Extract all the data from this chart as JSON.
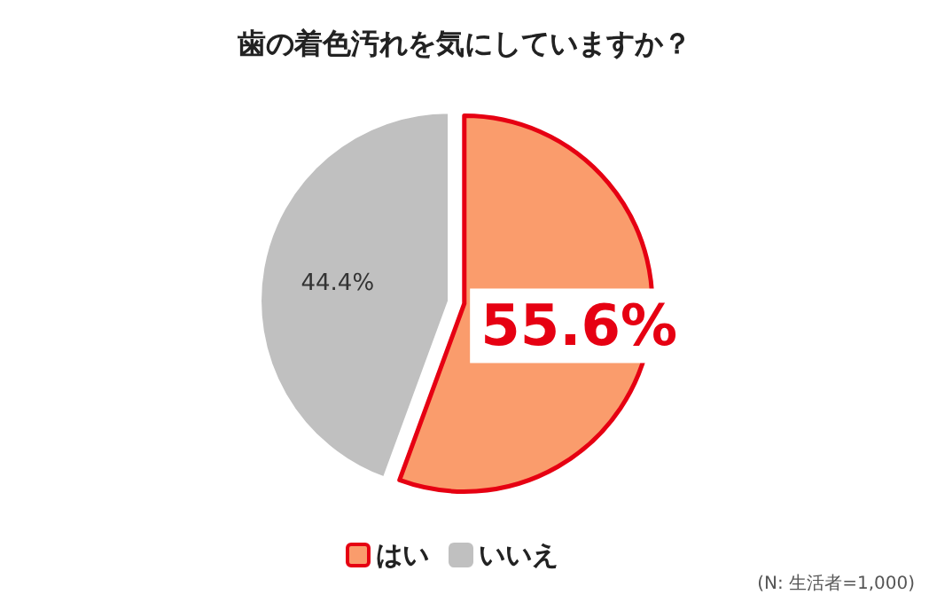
{
  "chart_data": {
    "type": "pie",
    "title": "歯の着色汚れを気にしていますか？",
    "categories": [
      "はい",
      "いいえ"
    ],
    "values": [
      55.6,
      44.4
    ],
    "colors": [
      "#fa9c6c",
      "#c0c0c0"
    ],
    "value_labels": [
      "55.6%",
      "44.4%"
    ],
    "legend": "bottom",
    "annotations": [
      "(N: 生活者=1,000)"
    ]
  }
}
